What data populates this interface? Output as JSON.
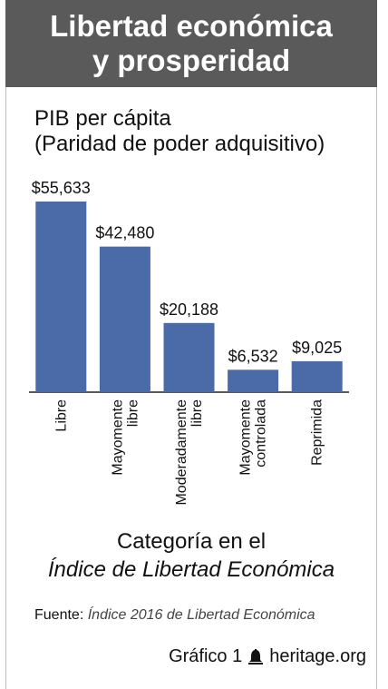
{
  "header": {
    "title_line1": "Libertad económica",
    "title_line2": "y prosperidad"
  },
  "chart_data": {
    "type": "bar",
    "title": "Libertad económica y prosperidad",
    "ylabel_line1": "PIB per cápita",
    "ylabel_line2": "(Paridad de poder adquisitivo)",
    "xlabel_line1": "Categoría en el",
    "xlabel_line2": "Índice de Libertad Económica",
    "categories": [
      [
        "Libre"
      ],
      [
        "Mayomente",
        "libre"
      ],
      [
        "Moderadamente",
        "libre"
      ],
      [
        "Mayomente",
        "controlada"
      ],
      [
        "Reprimida"
      ]
    ],
    "values": [
      55633,
      42480,
      20188,
      6532,
      9025
    ],
    "value_labels": [
      "$55,633",
      "$42,480",
      "$20,188",
      "$6,532",
      "$9,025"
    ],
    "ylim": [
      0,
      55633
    ],
    "grid": false,
    "bar_color": "#4a6aa8"
  },
  "source": {
    "label": "Fuente:",
    "text": "Índice 2016 de Libertad Económica"
  },
  "footer": {
    "chart_number": "Gráfico 1",
    "site": "heritage.org",
    "icon": "bell-icon"
  },
  "colors": {
    "banner": "#5a5a5a",
    "bar": "#4a6aa8"
  }
}
